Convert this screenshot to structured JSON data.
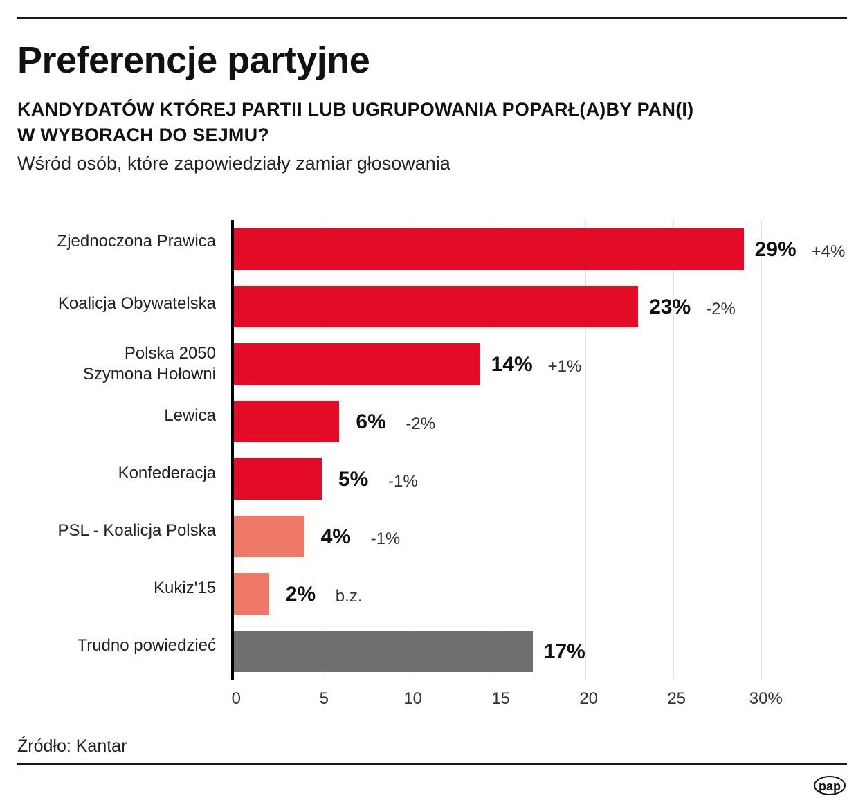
{
  "header": {
    "title": "Preferencje partyjne",
    "subtitle_line1": "KANDYDATÓW KTÓREJ PARTII LUB UGRUPOWANIA POPARŁ(A)BY PAN(I)",
    "subtitle_line2": "W WYBORACH DO SEJMU?",
    "description": "Wśród osób, które zapowiedziały zamiar głosowania"
  },
  "footer": {
    "source": "Źródło: Kantar",
    "logo": "pap"
  },
  "colors": {
    "primary_red": "#e30b26",
    "light_red": "#ef7967",
    "gray": "#6f6f6f"
  },
  "chart_data": {
    "type": "bar",
    "orientation": "horizontal",
    "title": "Preferencje partyjne",
    "subtitle": "KANDYDATÓW KTÓREJ PARTII LUB UGRUPOWANIA POPARŁ(A)BY PAN(I) W WYBORACH DO SEJMU?",
    "note": "Wśród osób, które zapowiedziały zamiar głosowania",
    "categories": [
      "Zjednoczona Prawica",
      "Koalicja Obywatelska",
      "Polska 2050 Szymona Hołowni",
      "Lewica",
      "Konfederacja",
      "PSL - Koalicja Polska",
      "Kukiz'15",
      "Trudno powiedzieć"
    ],
    "values": [
      29,
      23,
      14,
      6,
      5,
      4,
      2,
      17
    ],
    "value_labels": [
      "29%",
      "23%",
      "14%",
      "6%",
      "5%",
      "4%",
      "2%",
      "17%"
    ],
    "changes": [
      "+4%",
      "-2%",
      "+1%",
      "-2%",
      "-1%",
      "-1%",
      "b.z.",
      ""
    ],
    "bar_colors": [
      "#e30b26",
      "#e30b26",
      "#e30b26",
      "#e30b26",
      "#e30b26",
      "#ef7967",
      "#ef7967",
      "#6f6f6f"
    ],
    "xlabel": "",
    "ylabel": "",
    "xlim": [
      0,
      30
    ],
    "xticks": [
      "0",
      "5",
      "10",
      "15",
      "20",
      "25",
      "30%"
    ],
    "grid": true,
    "source": "Źródło: Kantar"
  },
  "rows": [
    {
      "label_line1": "Zjednoczona Prawica",
      "label_line2": "",
      "value": "29%",
      "change": "+4%"
    },
    {
      "label_line1": "Koalicja Obywatelska",
      "label_line2": "",
      "value": "23%",
      "change": "-2%"
    },
    {
      "label_line1": "Polska 2050",
      "label_line2": "Szymona Hołowni",
      "value": "14%",
      "change": "+1%"
    },
    {
      "label_line1": "Lewica",
      "label_line2": "",
      "value": "6%",
      "change": "-2%"
    },
    {
      "label_line1": "Konfederacja",
      "label_line2": "",
      "value": "5%",
      "change": "-1%"
    },
    {
      "label_line1": "PSL - Koalicja Polska",
      "label_line2": "",
      "value": "4%",
      "change": "-1%"
    },
    {
      "label_line1": "Kukiz'15",
      "label_line2": "",
      "value": "2%",
      "change": "b.z."
    },
    {
      "label_line1": "Trudno powiedzieć",
      "label_line2": "",
      "value": "17%",
      "change": ""
    }
  ]
}
